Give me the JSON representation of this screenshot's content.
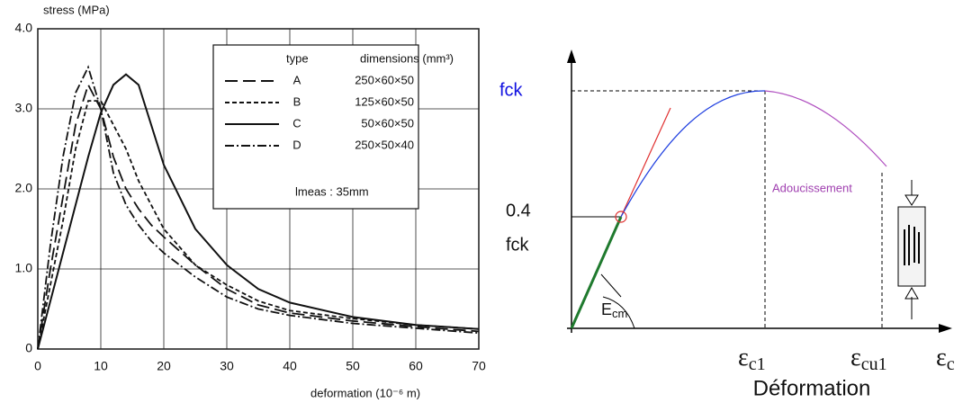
{
  "chart_data": {
    "type": "line",
    "ylabel": "stress  (MPa)",
    "xlabel": "deformation   (10⁻⁶ m)",
    "x": [
      0,
      2,
      4,
      6,
      8,
      10,
      12,
      14,
      16,
      18,
      20,
      25,
      30,
      35,
      40,
      50,
      60,
      70
    ],
    "series": [
      {
        "name": "A",
        "dimensions": "250×60×50",
        "color": "#111111",
        "style": "long-dash",
        "values": [
          0,
          1.0,
          1.9,
          2.8,
          3.3,
          3.0,
          2.4,
          2.0,
          1.75,
          1.55,
          1.4,
          1.05,
          0.75,
          0.55,
          0.45,
          0.35,
          0.28,
          0.22
        ]
      },
      {
        "name": "B",
        "dimensions": "125×60×50",
        "color": "#111111",
        "style": "short-dash",
        "values": [
          0,
          0.8,
          1.6,
          2.5,
          3.1,
          3.1,
          2.8,
          2.5,
          2.1,
          1.8,
          1.5,
          1.05,
          0.8,
          0.6,
          0.48,
          0.38,
          0.3,
          0.25
        ]
      },
      {
        "name": "C",
        "dimensions": "50×60×50",
        "color": "#111111",
        "style": "solid",
        "values": [
          0,
          0.6,
          1.2,
          1.8,
          2.4,
          2.95,
          3.3,
          3.43,
          3.3,
          2.8,
          2.3,
          1.5,
          1.05,
          0.75,
          0.58,
          0.4,
          0.3,
          0.25
        ]
      },
      {
        "name": "D",
        "dimensions": "250×50×40",
        "color": "#111111",
        "style": "dash-dot",
        "values": [
          0,
          1.3,
          2.4,
          3.2,
          3.52,
          3.0,
          2.2,
          1.8,
          1.55,
          1.35,
          1.2,
          0.9,
          0.65,
          0.5,
          0.42,
          0.32,
          0.26,
          0.2
        ]
      }
    ],
    "legend_headers": [
      "type",
      "dimensions (mm³)"
    ],
    "legend_note": "lmeas  :  35mm",
    "xlim": [
      0,
      70
    ],
    "xticks": [
      0,
      10,
      20,
      30,
      40,
      50,
      60,
      70
    ],
    "ylim": [
      0,
      4.0
    ],
    "yticks": [
      0,
      {
        "value": 1,
        "label": "1.0"
      },
      {
        "value": 2,
        "label": "2.0"
      },
      {
        "value": 3,
        "label": "3.0"
      },
      {
        "value": 4,
        "label": "4.0"
      }
    ],
    "grid": true
  },
  "diagram": {
    "fck": "fck",
    "low_line1": "0.4",
    "low_line2": "fck",
    "softening": "Adoucissement",
    "modulus": {
      "base": "E",
      "sub": "cm"
    },
    "eps_c1": {
      "base": "ε",
      "sub": "c1"
    },
    "eps_cu1": {
      "base": "ε",
      "sub": "cu1"
    },
    "eps_c": {
      "base": "ε",
      "sub": "c"
    },
    "xlabel": "Déformation"
  }
}
